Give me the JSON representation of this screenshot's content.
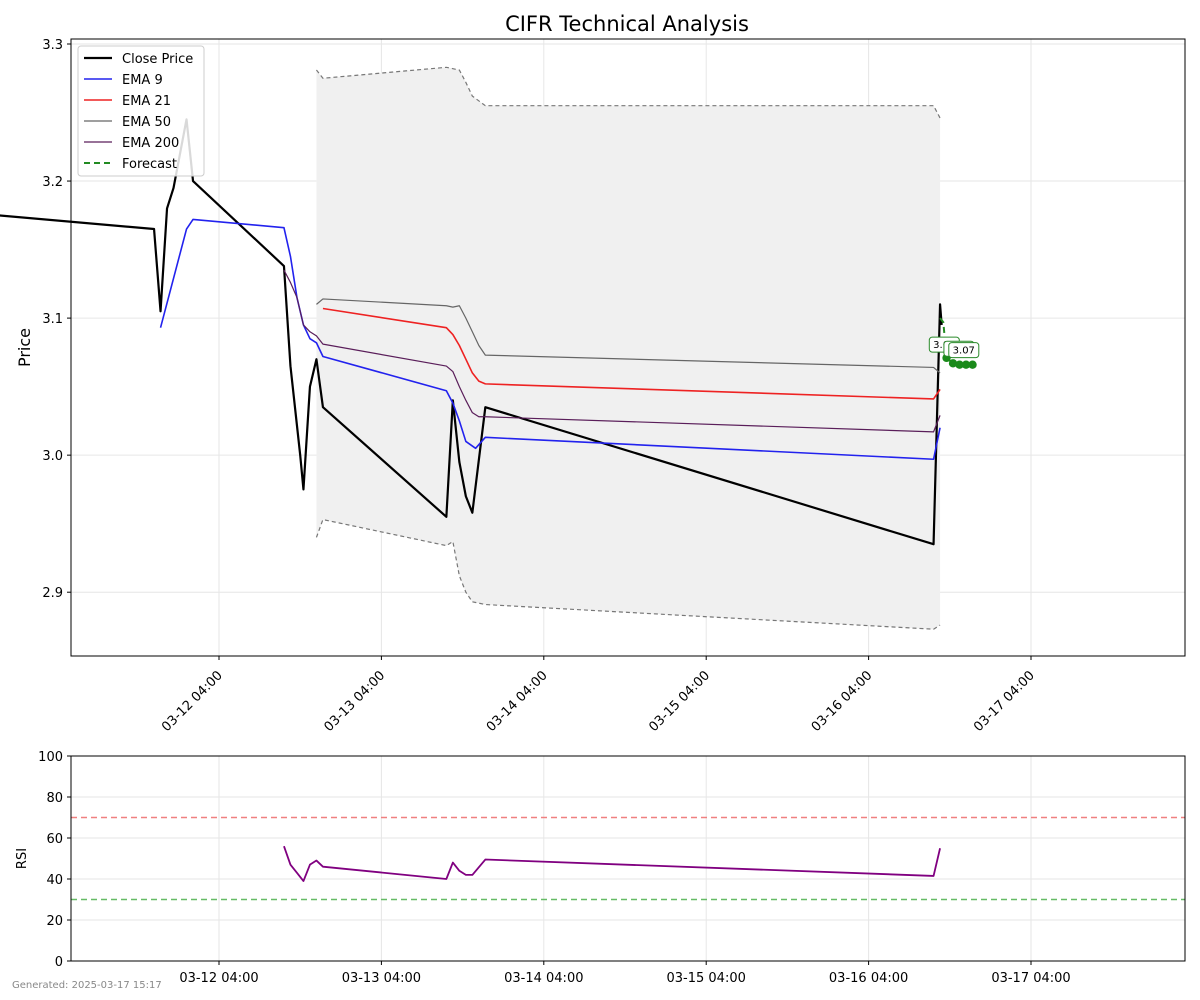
{
  "title": "CIFR Technical Analysis",
  "footer": "Generated: 2025-03-17 15:17",
  "x_ticks": [
    "03-12 04:00",
    "03-13 04:00",
    "03-14 04:00",
    "03-15 04:00",
    "03-16 04:00",
    "03-17 04:00"
  ],
  "chart_data": [
    {
      "type": "line",
      "title": "CIFR Technical Analysis",
      "ylabel": "Price",
      "xlabel": "",
      "ylim": [
        2.85,
        3.3
      ],
      "y_ticks": [
        2.9,
        3.0,
        3.1,
        3.2,
        3.3
      ],
      "grid": true,
      "legend_position": "top-left",
      "legend": [
        "Close Price",
        "EMA 9",
        "EMA 21",
        "EMA 50",
        "EMA 200",
        "Forecast"
      ],
      "series": [
        {
          "name": "Close Price",
          "color": "#000000",
          "style": "solid",
          "points": [
            [
              -1.6,
              2.96
            ],
            [
              -1.56,
              3.055
            ],
            [
              -1.54,
              3.055
            ],
            [
              -1.48,
              2.98
            ],
            [
              -1.44,
              3.15
            ],
            [
              -1.4,
              3.195
            ],
            [
              -1.36,
              3.175
            ],
            [
              -0.4,
              3.165
            ],
            [
              -0.36,
              3.105
            ],
            [
              -0.32,
              3.18
            ],
            [
              -0.28,
              3.195
            ],
            [
              -0.2,
              3.245
            ],
            [
              -0.16,
              3.2
            ],
            [
              0.4,
              3.138
            ],
            [
              0.44,
              3.065
            ],
            [
              0.5,
              3.0
            ],
            [
              0.52,
              2.975
            ],
            [
              0.56,
              3.05
            ],
            [
              0.6,
              3.07
            ],
            [
              0.64,
              3.035
            ],
            [
              1.4,
              2.955
            ],
            [
              1.44,
              3.04
            ],
            [
              1.48,
              2.995
            ],
            [
              1.52,
              2.97
            ],
            [
              1.56,
              2.958
            ],
            [
              1.64,
              3.035
            ],
            [
              4.4,
              2.935
            ],
            [
              4.44,
              3.11
            ],
            [
              4.45,
              3.095
            ]
          ]
        },
        {
          "name": "EMA 9",
          "color": "#2222ee",
          "style": "solid",
          "points": [
            [
              -0.36,
              3.093
            ],
            [
              -0.2,
              3.165
            ],
            [
              -0.16,
              3.172
            ],
            [
              0.4,
              3.166
            ],
            [
              0.44,
              3.145
            ],
            [
              0.48,
              3.115
            ],
            [
              0.52,
              3.095
            ],
            [
              0.56,
              3.085
            ],
            [
              0.6,
              3.082
            ],
            [
              0.64,
              3.072
            ],
            [
              1.4,
              3.047
            ],
            [
              1.44,
              3.038
            ],
            [
              1.48,
              3.025
            ],
            [
              1.52,
              3.01
            ],
            [
              1.58,
              3.005
            ],
            [
              1.64,
              3.013
            ],
            [
              4.4,
              2.997
            ],
            [
              4.44,
              3.02
            ]
          ]
        },
        {
          "name": "EMA 21",
          "color": "#ee2222",
          "style": "solid",
          "points": [
            [
              0.64,
              3.107
            ],
            [
              1.4,
              3.093
            ],
            [
              1.44,
              3.088
            ],
            [
              1.48,
              3.08
            ],
            [
              1.52,
              3.07
            ],
            [
              1.56,
              3.06
            ],
            [
              1.6,
              3.054
            ],
            [
              1.64,
              3.052
            ],
            [
              4.4,
              3.041
            ],
            [
              4.44,
              3.048
            ]
          ]
        },
        {
          "name": "EMA 50",
          "color": "#666666",
          "style": "solid",
          "points": [
            [
              0.6,
              3.11
            ],
            [
              0.64,
              3.114
            ],
            [
              1.4,
              3.109
            ],
            [
              1.44,
              3.108
            ],
            [
              1.48,
              3.109
            ],
            [
              1.52,
              3.1
            ],
            [
              1.56,
              3.09
            ],
            [
              1.6,
              3.08
            ],
            [
              1.64,
              3.073
            ],
            [
              4.4,
              3.064
            ],
            [
              4.44,
              3.06
            ]
          ]
        },
        {
          "name": "EMA 200",
          "color": "#5a1e5a",
          "style": "solid",
          "points": [
            [
              0.4,
              3.135
            ],
            [
              0.44,
              3.126
            ],
            [
              0.48,
              3.115
            ],
            [
              0.52,
              3.095
            ],
            [
              0.56,
              3.09
            ],
            [
              0.6,
              3.087
            ],
            [
              0.64,
              3.081
            ],
            [
              1.4,
              3.065
            ],
            [
              1.44,
              3.061
            ],
            [
              1.48,
              3.05
            ],
            [
              1.52,
              3.04
            ],
            [
              1.56,
              3.031
            ],
            [
              1.6,
              3.028
            ],
            [
              1.64,
              3.028
            ],
            [
              4.4,
              3.017
            ],
            [
              4.44,
              3.029
            ]
          ]
        },
        {
          "name": "Forecast",
          "color": "#228B22",
          "style": "dashed",
          "points": [
            [
              4.44,
              3.1
            ],
            [
              4.46,
              3.097
            ],
            [
              4.48,
              3.071
            ],
            [
              4.52,
              3.067
            ],
            [
              4.56,
              3.066
            ],
            [
              4.6,
              3.066
            ],
            [
              4.64,
              3.066
            ]
          ]
        }
      ],
      "bands": [
        {
          "color": "#f0f0f0",
          "upper": [
            [
              0.6,
              3.281
            ],
            [
              0.64,
              3.275
            ],
            [
              1.4,
              3.283
            ],
            [
              1.44,
              3.282
            ],
            [
              1.48,
              3.281
            ],
            [
              1.52,
              3.272
            ],
            [
              1.56,
              3.262
            ],
            [
              1.64,
              3.255
            ],
            [
              4.4,
              3.255
            ],
            [
              4.44,
              3.246
            ]
          ],
          "lower": [
            [
              0.6,
              2.94
            ],
            [
              0.64,
              2.953
            ],
            [
              1.4,
              2.934
            ],
            [
              1.44,
              2.937
            ],
            [
              1.48,
              2.912
            ],
            [
              1.52,
              2.9
            ],
            [
              1.56,
              2.893
            ],
            [
              1.64,
              2.891
            ],
            [
              4.4,
              2.873
            ],
            [
              4.44,
              2.876
            ]
          ]
        }
      ],
      "forecast_labels": [
        {
          "x": 4.46,
          "y": 3.081,
          "text": "3.08"
        },
        {
          "x": 4.55,
          "y": 3.078,
          "text": "3.07"
        },
        {
          "x": 4.58,
          "y": 3.077,
          "text": "3.07"
        }
      ]
    },
    {
      "type": "line",
      "ylabel": "RSI",
      "xlabel": "",
      "ylim": [
        0,
        100
      ],
      "y_ticks": [
        0,
        20,
        40,
        60,
        80,
        100
      ],
      "grid": true,
      "hlines": [
        {
          "value": 70,
          "color": "#f08080"
        },
        {
          "value": 30,
          "color": "#66bb66"
        }
      ],
      "series": [
        {
          "name": "RSI",
          "color": "#800080",
          "points": [
            [
              0.4,
              56
            ],
            [
              0.44,
              47
            ],
            [
              0.48,
              43
            ],
            [
              0.52,
              39
            ],
            [
              0.56,
              47
            ],
            [
              0.6,
              49
            ],
            [
              0.64,
              46
            ],
            [
              1.4,
              40
            ],
            [
              1.44,
              48
            ],
            [
              1.48,
              44
            ],
            [
              1.52,
              42
            ],
            [
              1.56,
              42
            ],
            [
              1.64,
              49.5
            ],
            [
              4.4,
              41.5
            ],
            [
              4.44,
              55
            ]
          ]
        }
      ]
    }
  ]
}
